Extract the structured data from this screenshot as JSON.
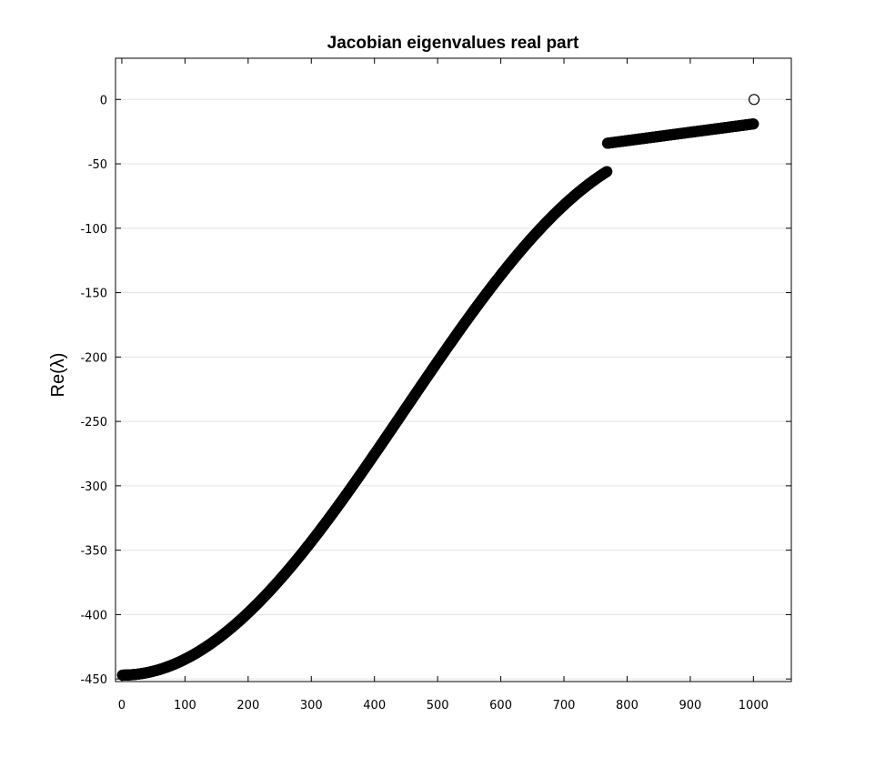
{
  "chart_data": {
    "type": "scatter",
    "title": "Jacobian eigenvalues real part",
    "xlabel": "",
    "ylabel": "Re(λ)",
    "xlim": [
      -10,
      1060
    ],
    "ylim": [
      -452,
      32
    ],
    "x_ticks": [
      "0",
      "100",
      "200",
      "300",
      "400",
      "500",
      "600",
      "700",
      "800",
      "900",
      "1000"
    ],
    "y_ticks": [
      "0",
      "-50",
      "-100",
      "-150",
      "-200",
      "-250",
      "-300",
      "-350",
      "-400",
      "-450"
    ],
    "grid": "horizontal",
    "marker": "open-circle",
    "color": "#000000",
    "series": [
      {
        "description": "continuous branch, one point per eigenvalue index",
        "x_range": [
          1,
          768
        ],
        "y_start": -447,
        "y_end": -56,
        "shape": "half-cosine rise"
      },
      {
        "description": "linear branch",
        "x_range": [
          769,
          1000
        ],
        "y_start": -34,
        "y_end": -19
      },
      {
        "description": "isolated eigenvalue",
        "x": [
          1001
        ],
        "y": [
          0
        ]
      }
    ]
  }
}
